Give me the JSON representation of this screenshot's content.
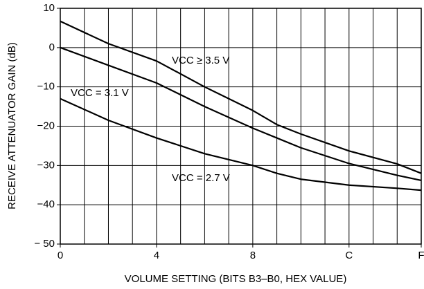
{
  "chart_data": {
    "type": "line",
    "x_label": "VOLUME SETTING (BITS B3–B0, HEX VALUE)",
    "y_label": "RECEIVE ATTENUATOR GAIN (dB)",
    "x": [
      0,
      2,
      4,
      6,
      8,
      9,
      10,
      12,
      14,
      15
    ],
    "series": [
      {
        "name": "VCC ≥ 3.5 V",
        "color": "#000000",
        "values": [
          6.7,
          1,
          -3.4,
          -10,
          -16,
          -19.6,
          -22,
          -26.3,
          -29.6,
          -32
        ]
      },
      {
        "name": "VCC = 3.1 V",
        "color": "#000000",
        "values": [
          0,
          -4.5,
          -9,
          -15,
          -20.5,
          -23,
          -25.5,
          -29.5,
          -32.5,
          -33.8
        ]
      },
      {
        "name": "VCC = 2.7 V",
        "color": "#000000",
        "values": [
          -13,
          -18.5,
          -23,
          -27,
          -30,
          -32,
          -33.5,
          -35,
          -35.8,
          -36.3
        ]
      }
    ],
    "xlim": [
      0,
      15
    ],
    "xticks": [
      0,
      4,
      8,
      {
        "value": 12,
        "label": "C"
      },
      {
        "value": 15,
        "label": "F"
      }
    ],
    "ylim": [
      -50,
      10
    ],
    "yticks": [
      10,
      0,
      {
        "value": -10,
        "label": "−10"
      },
      {
        "value": -20,
        "label": "−20"
      },
      {
        "value": -30,
        "label": "−30"
      },
      {
        "value": -40,
        "label": "−40"
      },
      {
        "value": -50,
        "label": "− 50"
      }
    ],
    "grid": true
  }
}
